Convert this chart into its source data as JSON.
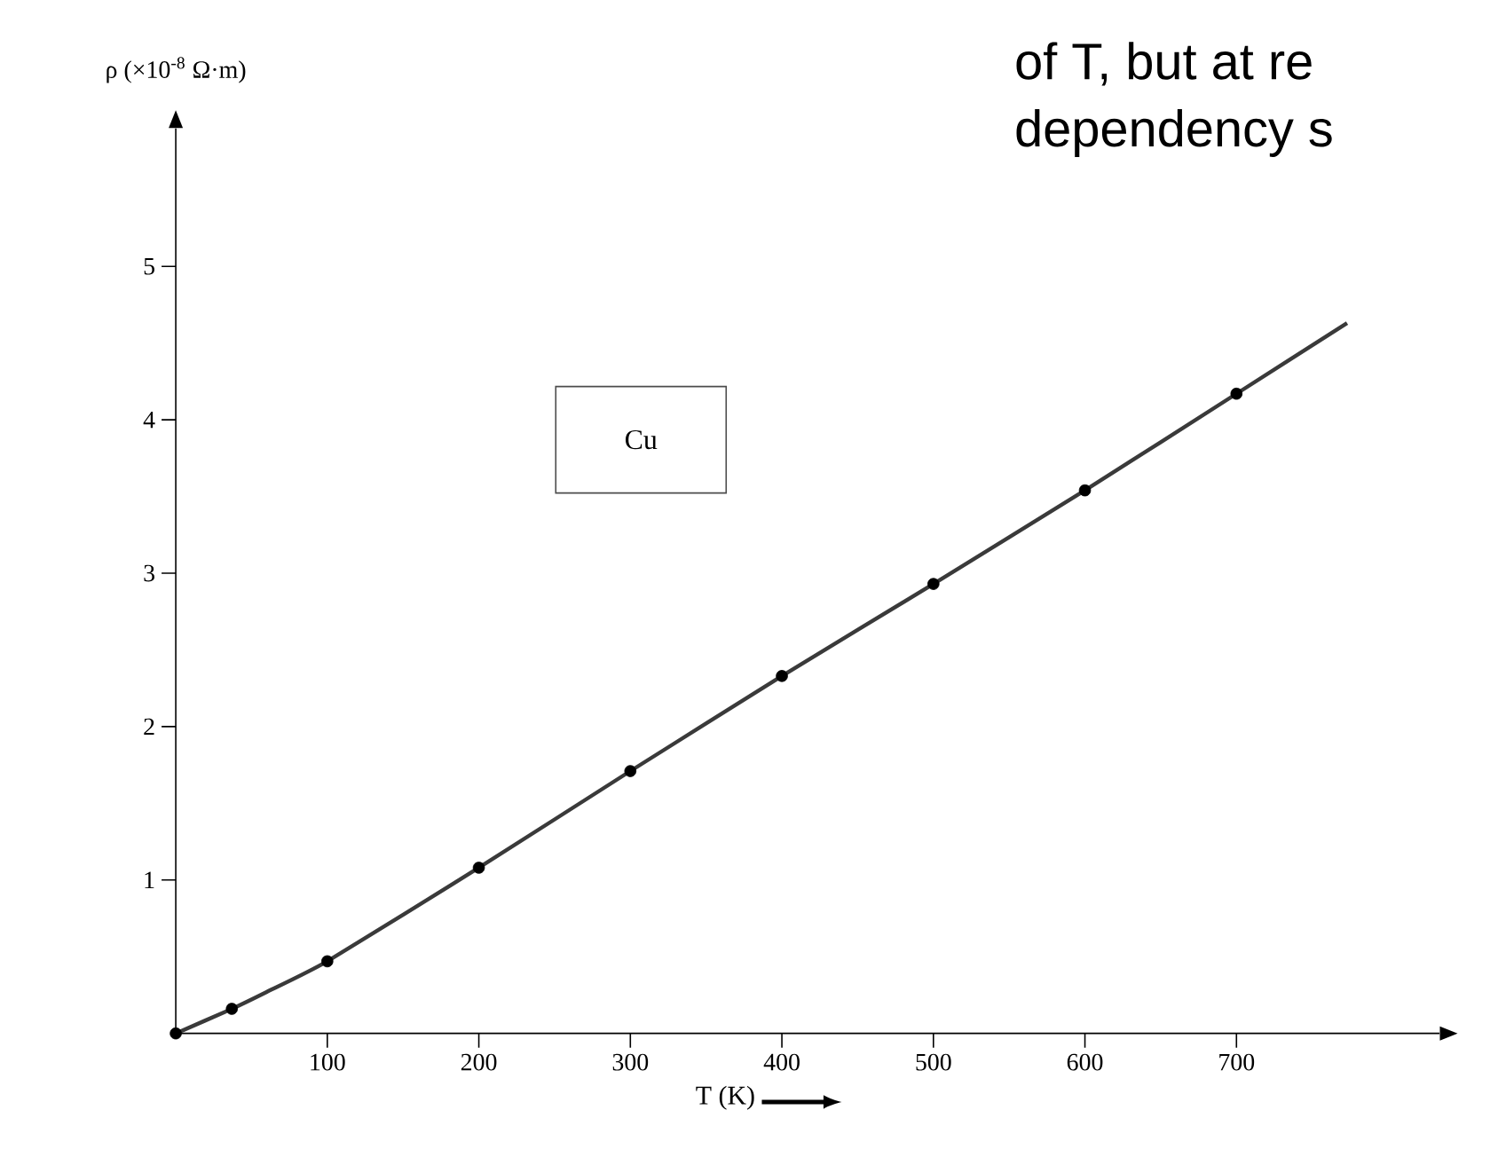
{
  "chart_data": {
    "type": "line",
    "xlabel": "T (K)",
    "ylabel": "ρ (×10$^{-8}$ Ω·m)",
    "annotations": [
      "Cu",
      "of T, but at re",
      "dependency s"
    ],
    "xlim": [
      0,
      834
    ],
    "ylim": [
      0,
      5.9
    ],
    "xticks": [
      100,
      200,
      300,
      400,
      500,
      600,
      700
    ],
    "yticks": [
      1,
      2,
      3,
      4,
      5
    ],
    "grid": false,
    "legend": false,
    "series": [
      {
        "type": "line",
        "color": "#3a3a3a",
        "marker": "none",
        "x": [
          0,
          37,
          60,
          100,
          200,
          300,
          400,
          500,
          600,
          700,
          773
        ],
        "values": [
          0,
          0.16,
          0.27,
          0.47,
          1.08,
          1.71,
          2.33,
          2.93,
          3.54,
          4.17,
          4.63
        ]
      },
      {
        "type": "scatter",
        "color": "#000000",
        "marker": "circle",
        "x": [
          0,
          37,
          100,
          200,
          300,
          400,
          500,
          600,
          700
        ],
        "values": [
          0,
          0.16,
          0.47,
          1.08,
          1.71,
          2.33,
          2.93,
          3.54,
          4.17
        ]
      }
    ]
  }
}
